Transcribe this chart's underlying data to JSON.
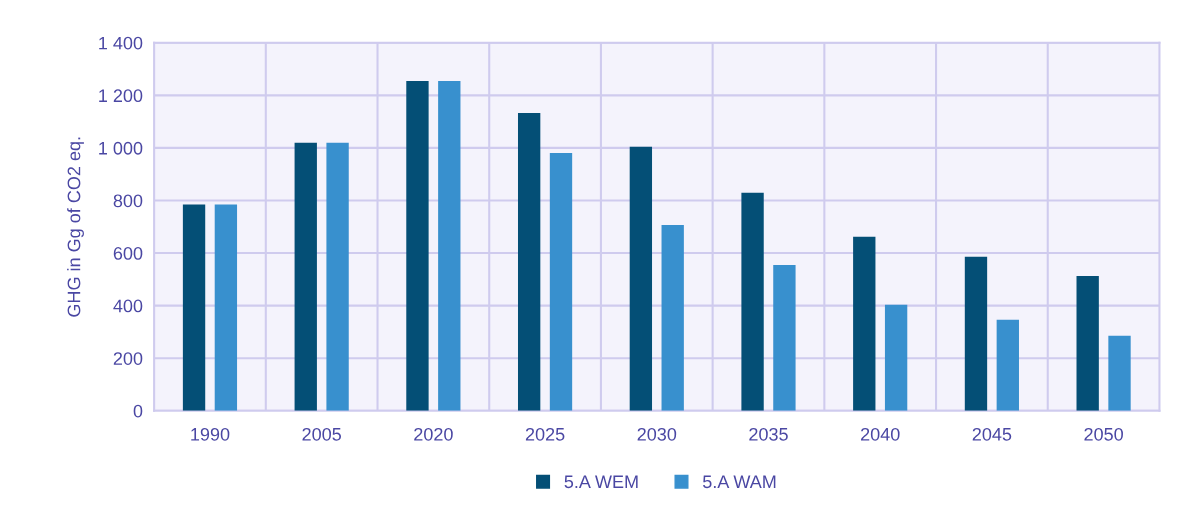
{
  "chart_data": {
    "type": "bar",
    "ylabel": "GHG in Gg of CO2 eq.",
    "categories": [
      "1990",
      "2005",
      "2020",
      "2025",
      "2030",
      "2035",
      "2040",
      "2045",
      "2050"
    ],
    "series": [
      {
        "name": "5.A WEM",
        "color": "#044f76",
        "values": [
          785,
          1020,
          1255,
          1133,
          1004,
          829,
          662,
          586,
          513
        ]
      },
      {
        "name": "5.A WAM",
        "color": "#3890ce",
        "values": [
          785,
          1020,
          1255,
          981,
          707,
          555,
          403,
          346,
          285
        ]
      }
    ],
    "ylim": [
      0,
      1400
    ],
    "yticks": [
      0,
      200,
      400,
      600,
      800,
      {
        "value": 1000,
        "label": "1 000"
      },
      {
        "value": 1200,
        "label": "1 200"
      },
      {
        "value": 1400,
        "label": "1 400"
      }
    ],
    "grid": true,
    "legend": "bottom"
  }
}
